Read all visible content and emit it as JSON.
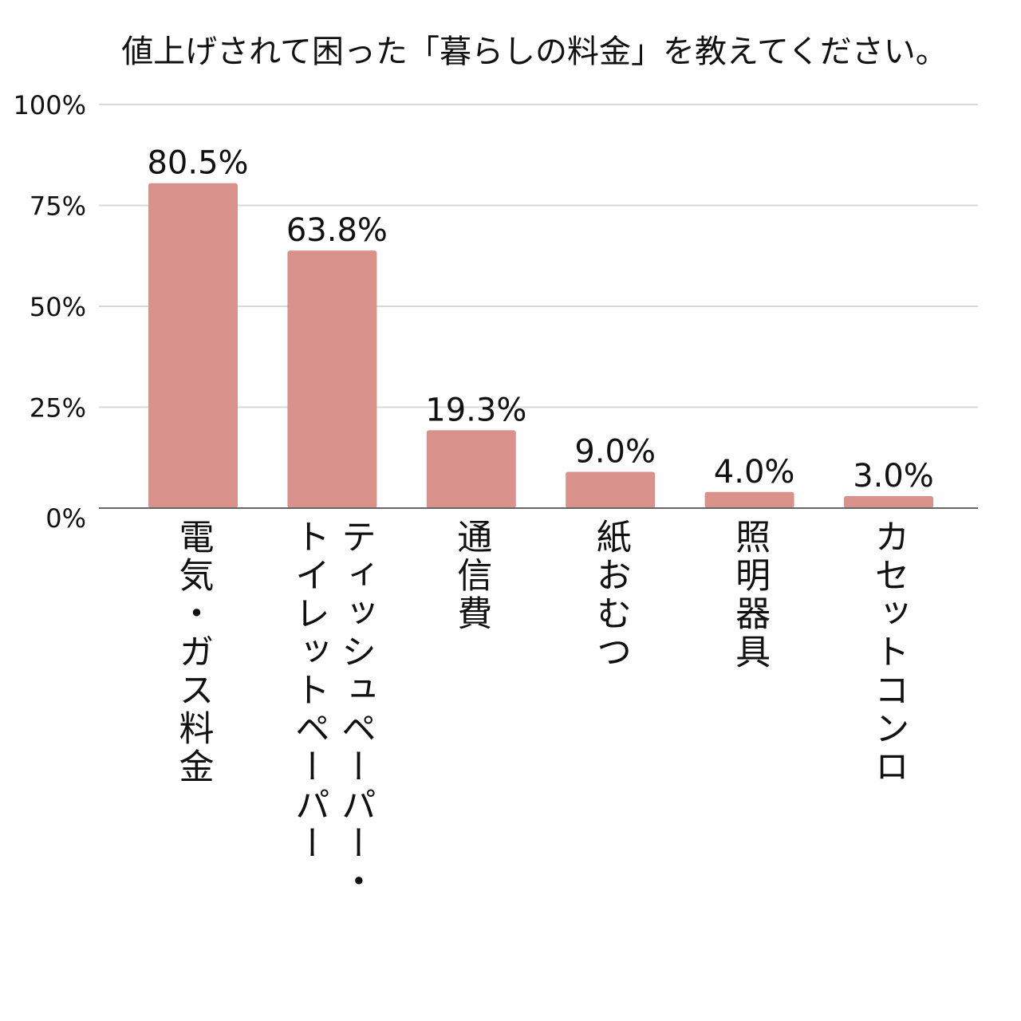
{
  "chart_data": {
    "type": "bar",
    "title": "値上げされて困った「暮らしの料金」を教えてください。",
    "xlabel": "",
    "ylabel": "",
    "categories": [
      "電気・ガス料金",
      "ティッシュペーパー・トイレットペーパー",
      "通信費",
      "紙おむつ",
      "照明器具",
      "カセットコンロ"
    ],
    "category_lines": [
      [
        "電気・ガス料金"
      ],
      [
        "ティッシュペーパー・",
        "トイレットペーパー"
      ],
      [
        "通信費"
      ],
      [
        "紙おむつ"
      ],
      [
        "照明器具"
      ],
      [
        "カセットコンロ"
      ]
    ],
    "values": [
      80.5,
      63.8,
      19.3,
      9.0,
      4.0,
      3.0
    ],
    "value_labels": [
      "80.5%",
      "63.8%",
      "19.3%",
      "9.0%",
      "4.0%",
      "3.0%"
    ],
    "ylim": [
      0,
      100
    ],
    "yticks": [
      0,
      25,
      50,
      75,
      100
    ],
    "ytick_labels": [
      "0%",
      "25%",
      "50%",
      "75%",
      "100%"
    ],
    "grid": true,
    "legend": "none",
    "colors": {
      "bar": "#d9918c",
      "grid": "#d9d9d9",
      "axis": "#666666",
      "text": "#111111"
    }
  }
}
